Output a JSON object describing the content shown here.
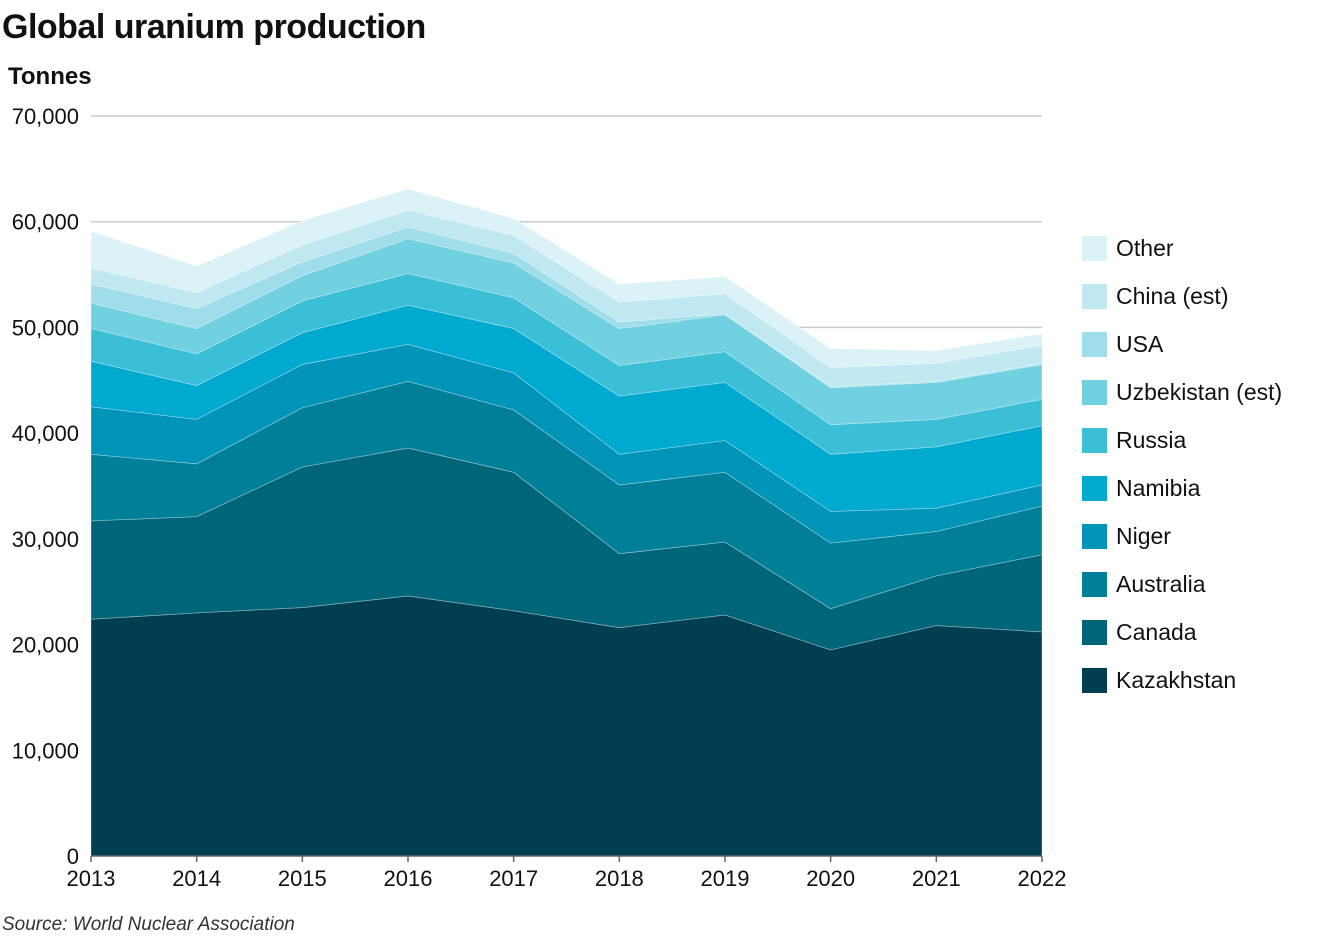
{
  "title": "Global uranium production",
  "source": "Source: World Nuclear Association",
  "chart_data": {
    "type": "area",
    "stacked": true,
    "title": "Global uranium production",
    "ylabel": "Tonnes",
    "xlabel": "",
    "ylim": [
      0,
      70000
    ],
    "y_ticks": [
      0,
      10000,
      20000,
      30000,
      40000,
      50000,
      60000,
      70000
    ],
    "y_tick_labels": [
      "0",
      "10,000",
      "20,000",
      "30,000",
      "40,000",
      "50,000",
      "60,000",
      "70,000"
    ],
    "x": [
      "2013",
      "2014",
      "2015",
      "2016",
      "2017",
      "2018",
      "2019",
      "2020",
      "2021",
      "2022"
    ],
    "grid": "horizontal",
    "legend_position": "right",
    "series": [
      {
        "name": "Kazakhstan",
        "color": "#003f52",
        "values": [
          22400,
          23000,
          23500,
          24600,
          23200,
          21600,
          22800,
          19500,
          21800,
          21200
        ]
      },
      {
        "name": "Canada",
        "color": "#006578",
        "values": [
          9300,
          9100,
          13300,
          14000,
          13100,
          7000,
          6900,
          3900,
          4700,
          7300
        ]
      },
      {
        "name": "Australia",
        "color": "#007f99",
        "values": [
          6300,
          5000,
          5600,
          6300,
          5900,
          6500,
          6600,
          6200,
          4200,
          4600
        ]
      },
      {
        "name": "Niger",
        "color": "#0094b8",
        "values": [
          4500,
          4200,
          4100,
          3500,
          3500,
          2900,
          3000,
          3000,
          2200,
          2000
        ]
      },
      {
        "name": "Namibia",
        "color": "#00a9cf",
        "values": [
          4300,
          3200,
          3000,
          3700,
          4200,
          5500,
          5500,
          5400,
          5800,
          5600
        ]
      },
      {
        "name": "Russia",
        "color": "#3abfd6",
        "values": [
          3100,
          3000,
          3000,
          3000,
          2900,
          2900,
          2900,
          2800,
          2600,
          2500
        ]
      },
      {
        "name": "Uzbekistan (est)",
        "color": "#72d1e1",
        "values": [
          2400,
          2400,
          2400,
          3300,
          3300,
          3500,
          3500,
          3500,
          3500,
          3300
        ]
      },
      {
        "name": "USA",
        "color": "#9edde9",
        "values": [
          1800,
          1900,
          1300,
          1100,
          900,
          600,
          100,
          100,
          100,
          100
        ]
      },
      {
        "name": "China (est)",
        "color": "#c0e8f0",
        "values": [
          1500,
          1500,
          1600,
          1600,
          1700,
          1900,
          1900,
          1800,
          1700,
          1700
        ]
      },
      {
        "name": "Other",
        "color": "#dbf2f6",
        "values": [
          3500,
          2500,
          2300,
          2000,
          1600,
          1700,
          1600,
          1800,
          1200,
          1100
        ]
      }
    ]
  }
}
